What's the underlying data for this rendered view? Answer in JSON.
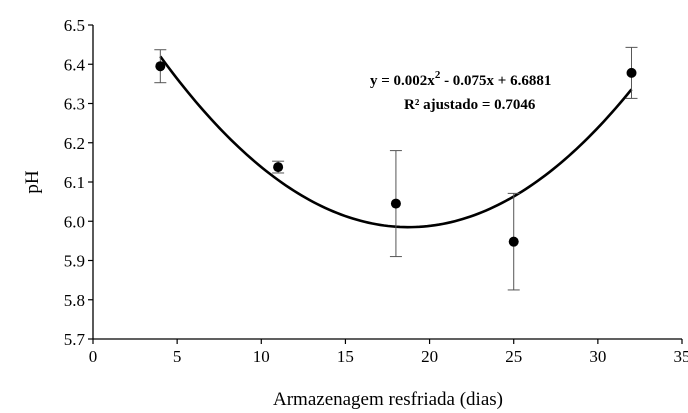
{
  "chart_data": {
    "type": "scatter",
    "xlabel": "Armazenagem  resfriada  (dias)",
    "ylabel": "pH",
    "xlim": [
      0,
      35
    ],
    "ylim": [
      5.7,
      6.5
    ],
    "x_ticks": [
      "0",
      "5",
      "10",
      "15",
      "20",
      "25",
      "30",
      "35"
    ],
    "y_ticks": [
      "5.7",
      "5.8",
      "5.9",
      "6.0",
      "6.1",
      "6.2",
      "6.3",
      "6.4",
      "6.5"
    ],
    "grid": false,
    "points": [
      {
        "x": 4,
        "y": 6.395,
        "err": 0.042
      },
      {
        "x": 11,
        "y": 6.138,
        "err": 0.015
      },
      {
        "x": 18,
        "y": 6.045,
        "err": 0.135
      },
      {
        "x": 25,
        "y": 5.948,
        "err": 0.123
      },
      {
        "x": 32,
        "y": 6.378,
        "err": 0.065
      }
    ],
    "trendline": {
      "type": "quadratic",
      "a": 0.002,
      "b": -0.075,
      "c": 6.6881,
      "x_range": [
        4,
        32
      ]
    },
    "annotation": {
      "equation_prefix": "y = 0.002x",
      "equation_sup": "2",
      "equation_suffix": "  - 0.075x  + 6.6881",
      "r2": "R² ajustado = 0.7046"
    },
    "colors": {
      "marker": "#000000",
      "line": "#000000"
    }
  }
}
